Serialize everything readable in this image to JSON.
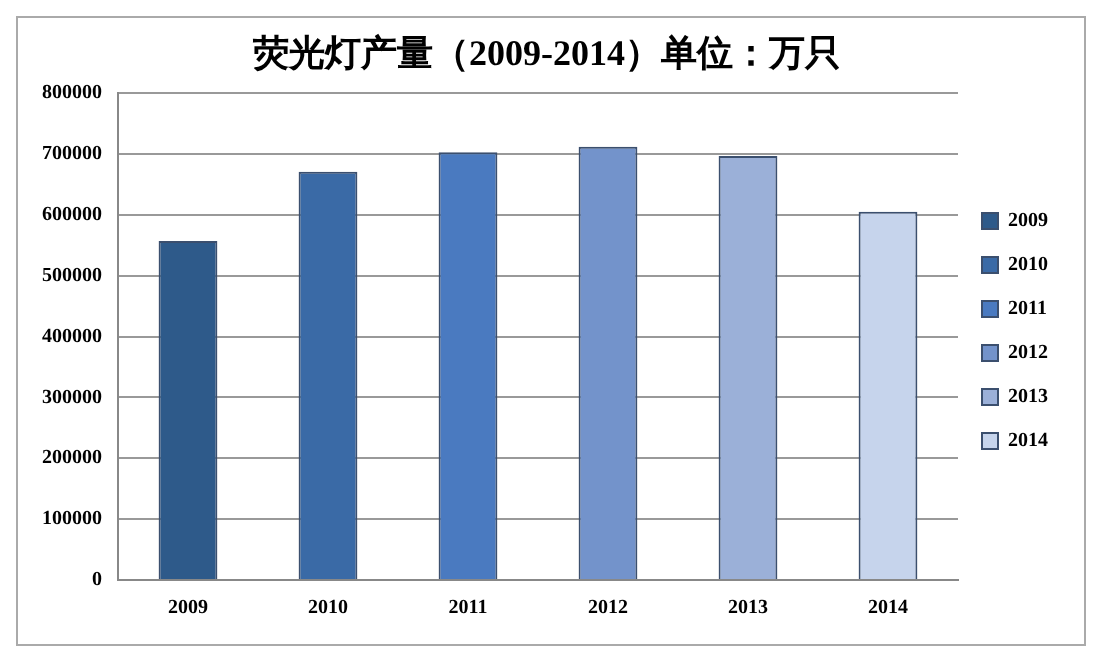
{
  "chart_data": {
    "type": "bar",
    "title": "荧光灯产量（2009-2014）单位：万只",
    "categories": [
      "2009",
      "2010",
      "2011",
      "2012",
      "2013",
      "2014"
    ],
    "series": [
      {
        "name": "2009",
        "color": "#2e5a8a",
        "values": [
          557000,
          null,
          null,
          null,
          null,
          null
        ]
      },
      {
        "name": "2010",
        "color": "#3a6aa6",
        "values": [
          null,
          671000,
          null,
          null,
          null,
          null
        ]
      },
      {
        "name": "2011",
        "color": "#4a7ac0",
        "values": [
          null,
          null,
          703000,
          null,
          null,
          null
        ]
      },
      {
        "name": "2012",
        "color": "#7393cb",
        "values": [
          null,
          null,
          null,
          712000,
          null,
          null
        ]
      },
      {
        "name": "2013",
        "color": "#9bb0d8",
        "values": [
          null,
          null,
          null,
          null,
          697000,
          null
        ]
      },
      {
        "name": "2014",
        "color": "#c6d4ec",
        "values": [
          null,
          null,
          null,
          null,
          null,
          605000
        ]
      }
    ],
    "ylim": [
      0,
      800000
    ],
    "yticks": [
      0,
      100000,
      200000,
      300000,
      400000,
      500000,
      600000,
      700000,
      800000
    ],
    "grid": "y",
    "legend": "right"
  }
}
